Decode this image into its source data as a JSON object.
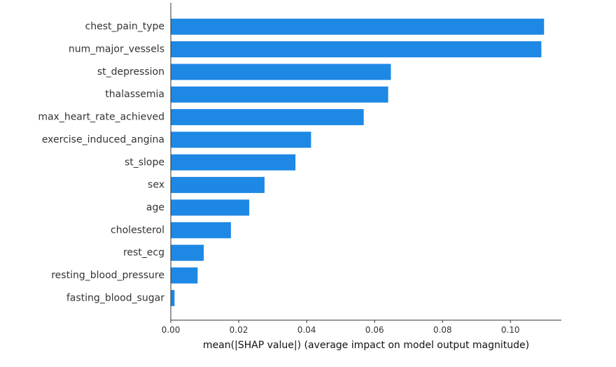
{
  "chart_data": {
    "type": "bar",
    "orientation": "horizontal",
    "categories": [
      "chest_pain_type",
      "num_major_vessels",
      "st_depression",
      "thalassemia",
      "max_heart_rate_achieved",
      "exercise_induced_angina",
      "st_slope",
      "sex",
      "age",
      "cholesterol",
      "rest_ecg",
      "resting_blood_pressure",
      "fasting_blood_sugar"
    ],
    "values": [
      0.1099,
      0.1091,
      0.0648,
      0.064,
      0.0568,
      0.0413,
      0.0367,
      0.0276,
      0.0231,
      0.0177,
      0.0097,
      0.0079,
      0.0011
    ],
    "xlabel": "mean(|SHAP value|) (average impact on model output magnitude)",
    "ylabel": "",
    "title": "",
    "xlim": [
      0,
      0.115
    ],
    "xticks": [
      0.0,
      0.02,
      0.04,
      0.06,
      0.08,
      0.1
    ],
    "xtick_labels": [
      "0.00",
      "0.02",
      "0.04",
      "0.06",
      "0.08",
      "0.10"
    ],
    "grid": false,
    "bar_color": "#1e88e5",
    "axis_color": "#333333"
  }
}
